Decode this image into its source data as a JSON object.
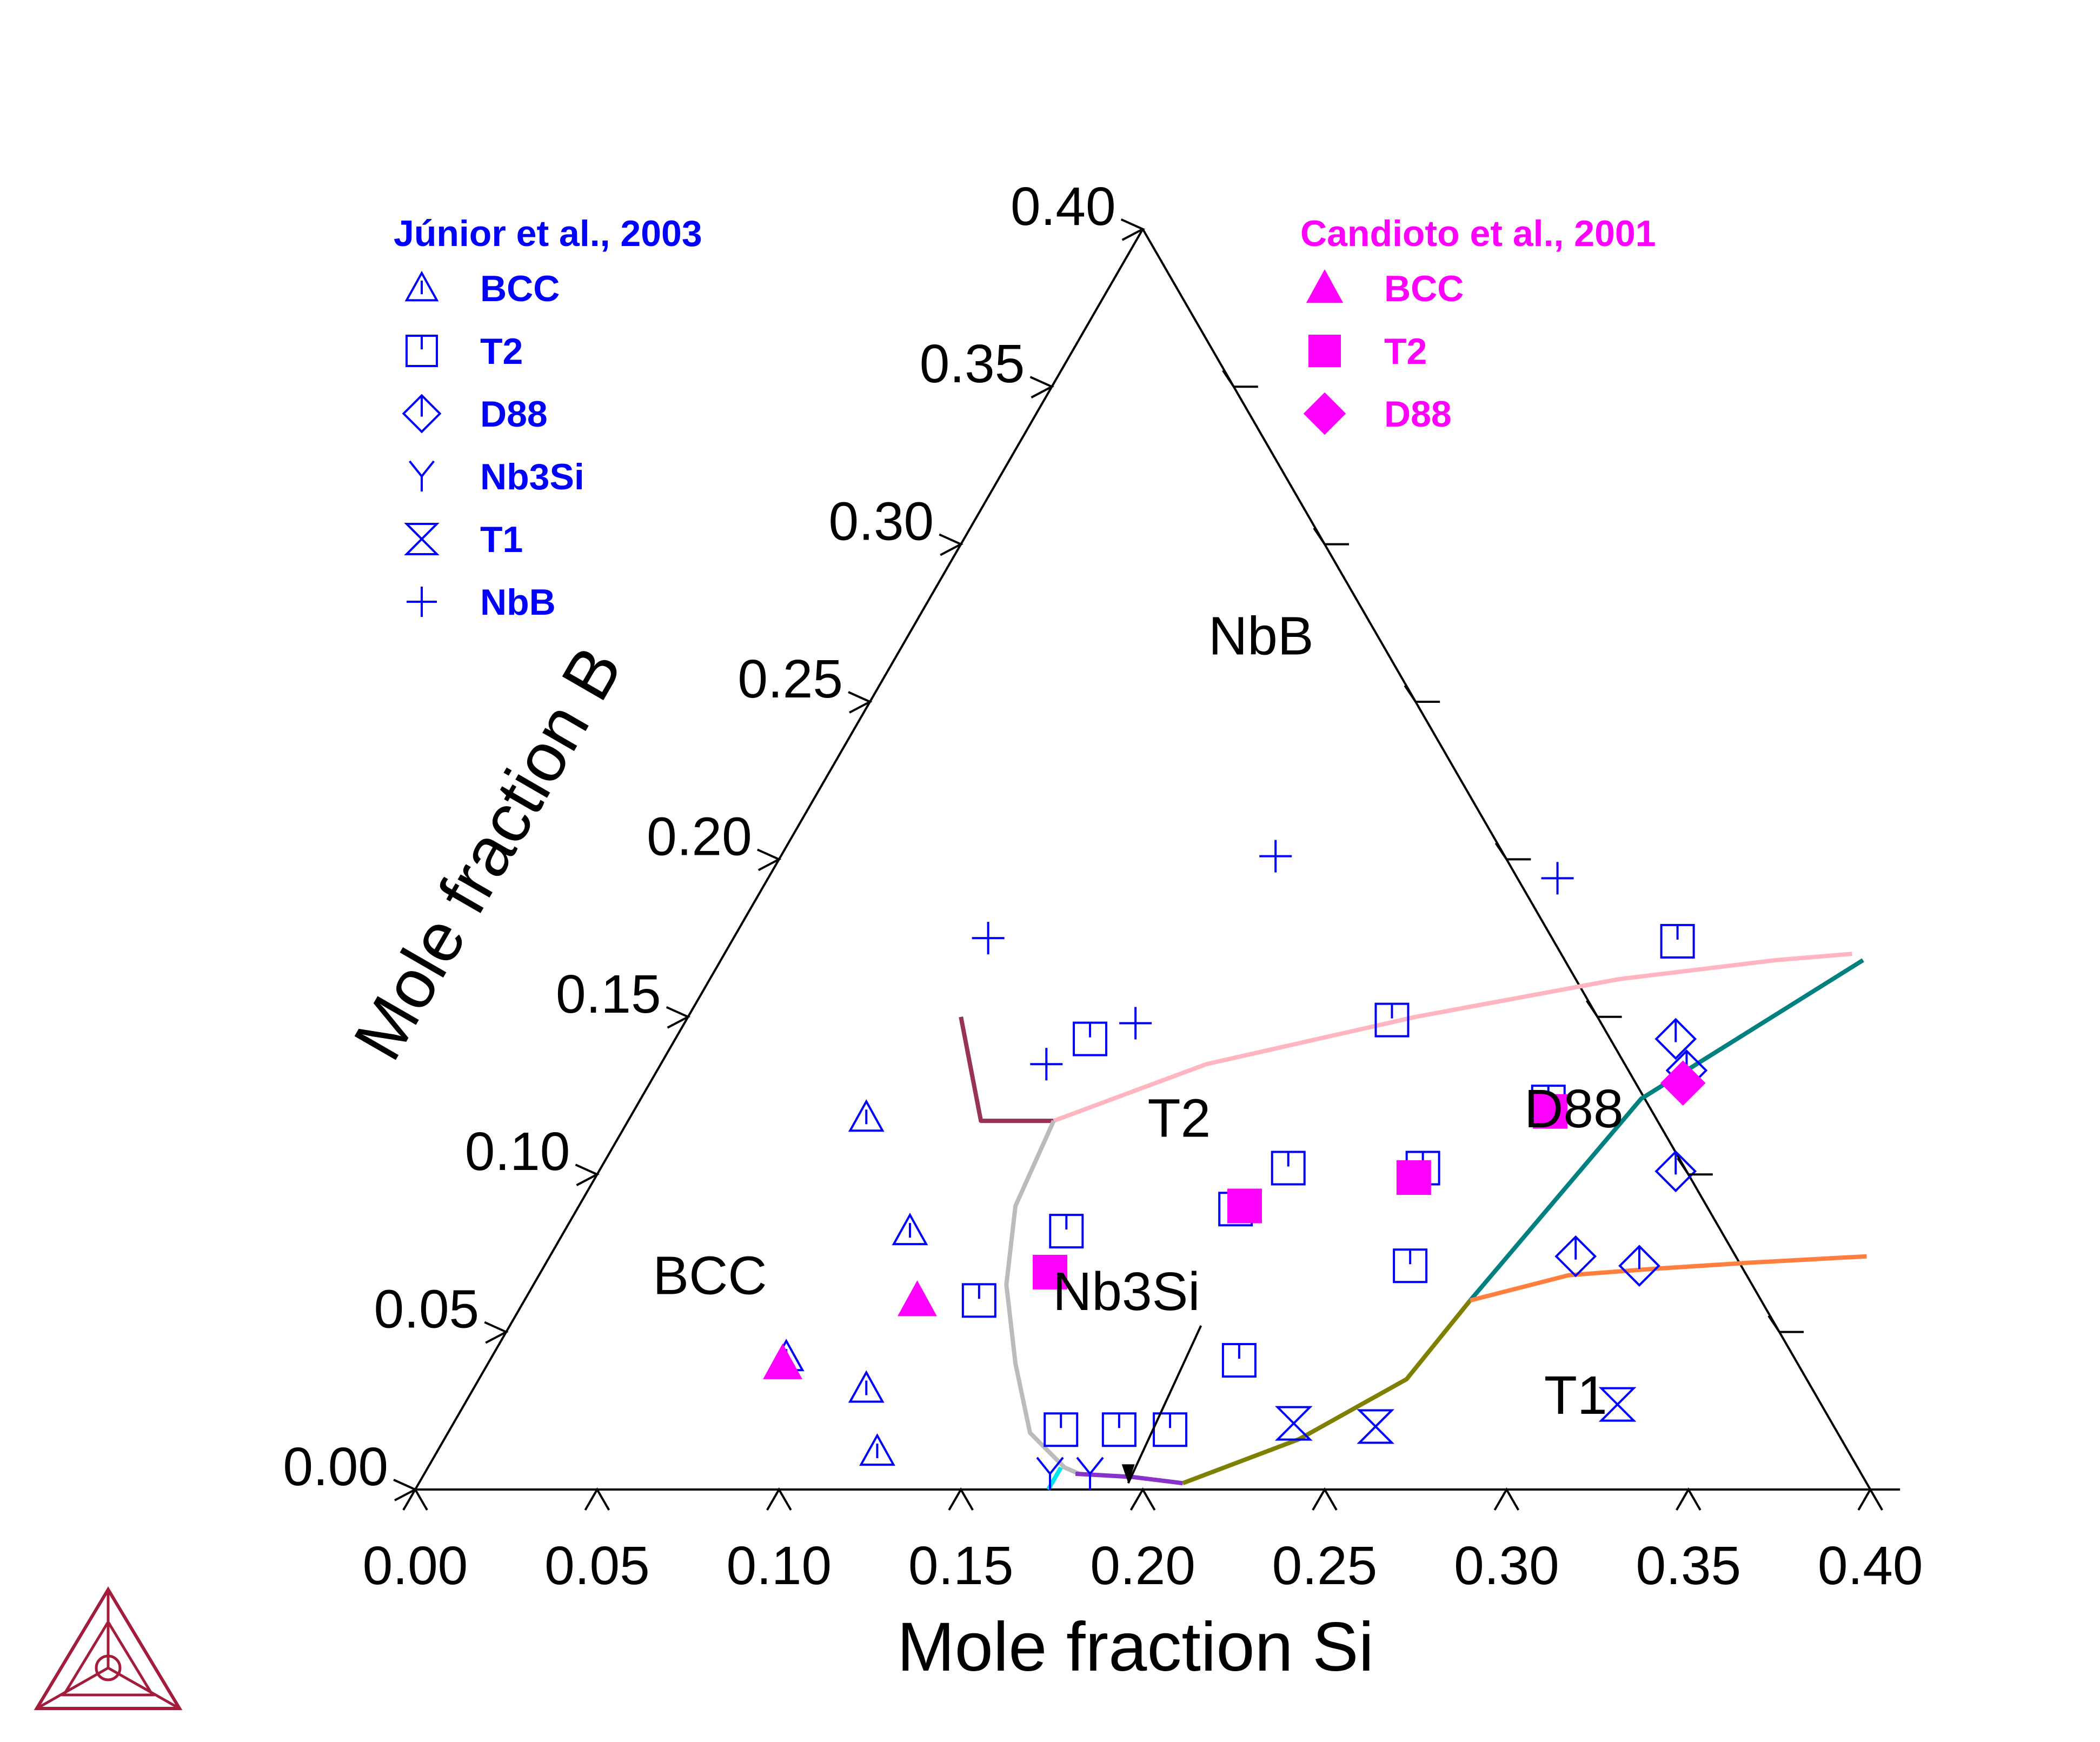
{
  "chart_data": {
    "type": "scatter",
    "subtype": "ternary-isothermal-section",
    "xlabel": "Mole fraction Si",
    "ylabel": "Mole fraction B",
    "xlim": [
      0,
      0.4
    ],
    "ylim": [
      0,
      0.4
    ],
    "grid": false,
    "x_ticks": [
      "0.00",
      "0.05",
      "0.10",
      "0.15",
      "0.20",
      "0.25",
      "0.30",
      "0.35",
      "0.40"
    ],
    "y_ticks": [
      "0.00",
      "0.05",
      "0.10",
      "0.15",
      "0.20",
      "0.25",
      "0.30",
      "0.35",
      "0.40"
    ],
    "region_labels": [
      {
        "text": "NbB",
        "si": 0.1,
        "b": 0.265
      },
      {
        "text": "T2",
        "si": 0.154,
        "b": 0.112
      },
      {
        "text": "BCC",
        "si": 0.05,
        "b": 0.062
      },
      {
        "text": "Nb3Si",
        "si": 0.167,
        "b": 0.057
      },
      {
        "text": "D88",
        "si": 0.261,
        "b": 0.115
      },
      {
        "text": "T1",
        "si": 0.307,
        "b": 0.024
      }
    ],
    "annotation_arrow": {
      "from": {
        "si": 0.19,
        "b": 0.052
      },
      "to": {
        "si": 0.195,
        "b": 0.002
      }
    },
    "phase_boundaries": [
      {
        "color": "#993355",
        "points": [
          [
            0.075,
            0.15
          ],
          [
            0.097,
            0.117
          ],
          [
            0.117,
            0.117
          ]
        ]
      },
      {
        "color": "#ffb6c1",
        "points": [
          [
            0.117,
            0.117
          ],
          [
            0.15,
            0.135
          ],
          [
            0.2,
            0.15
          ],
          [
            0.25,
            0.162
          ],
          [
            0.29,
            0.168
          ],
          [
            0.31,
            0.17
          ]
        ]
      },
      {
        "color": "#bbbbbb",
        "points": [
          [
            0.117,
            0.117
          ],
          [
            0.12,
            0.09
          ],
          [
            0.13,
            0.065
          ],
          [
            0.145,
            0.04
          ],
          [
            0.16,
            0.018
          ],
          [
            0.175,
            0.007
          ],
          [
            0.18,
            0.005
          ]
        ]
      },
      {
        "color": "#00e5ee",
        "points": [
          [
            0.174,
            0.007
          ],
          [
            0.174,
            0.0
          ]
        ]
      },
      {
        "color": "#8833cc",
        "points": [
          [
            0.179,
            0.005
          ],
          [
            0.195,
            0.004
          ],
          [
            0.21,
            0.002
          ]
        ]
      },
      {
        "color": "#808000",
        "points": [
          [
            0.21,
            0.002
          ],
          [
            0.235,
            0.016
          ],
          [
            0.255,
            0.035
          ],
          [
            0.26,
            0.06
          ]
        ]
      },
      {
        "color": "#008080",
        "points": [
          [
            0.26,
            0.06
          ],
          [
            0.275,
            0.124
          ],
          [
            0.314,
            0.168
          ]
        ]
      },
      {
        "color": "#ff7f3f",
        "points": [
          [
            0.26,
            0.06
          ],
          [
            0.283,
            0.068
          ],
          [
            0.305,
            0.07
          ],
          [
            0.331,
            0.072
          ],
          [
            0.362,
            0.074
          ]
        ]
      }
    ],
    "series": [
      {
        "name": "BCC",
        "group": "Júnior et al., 2003",
        "marker": "open-triangle",
        "color": "#0000ff",
        "points": [
          [
            0.065,
            0.118
          ],
          [
            0.081,
            0.042
          ],
          [
            0.095,
            0.082
          ],
          [
            0.108,
            0.032
          ],
          [
            0.121,
            0.012
          ]
        ]
      },
      {
        "name": "T2",
        "group": "Júnior et al., 2003",
        "marker": "open-square",
        "color": "#0000ff",
        "points": [
          [
            0.114,
            0.143
          ],
          [
            0.125,
            0.06
          ],
          [
            0.138,
            0.082
          ],
          [
            0.168,
            0.019
          ],
          [
            0.184,
            0.019
          ],
          [
            0.198,
            0.019
          ],
          [
            0.181,
            0.089
          ],
          [
            0.189,
            0.102
          ],
          [
            0.194,
            0.149
          ],
          [
            0.206,
            0.041
          ],
          [
            0.226,
            0.102
          ],
          [
            0.238,
            0.071
          ],
          [
            0.25,
            0.123
          ],
          [
            0.26,
            0.174
          ]
        ]
      },
      {
        "name": "D88",
        "group": "Júnior et al., 2003",
        "marker": "open-diamond",
        "color": "#0000ff",
        "points": [
          [
            0.275,
            0.143
          ],
          [
            0.283,
            0.133
          ],
          [
            0.296,
            0.101
          ],
          [
            0.282,
            0.074
          ],
          [
            0.301,
            0.071
          ]
        ]
      },
      {
        "name": "Nb3Si",
        "group": "Júnior et al., 2003",
        "marker": "open-y",
        "color": "#0000ff",
        "points": [
          [
            0.172,
            0.005
          ],
          [
            0.183,
            0.005
          ]
        ]
      },
      {
        "name": "T1",
        "group": "Júnior et al., 2003",
        "marker": "open-hourglass",
        "color": "#0000ff",
        "points": [
          [
            0.231,
            0.021
          ],
          [
            0.254,
            0.02
          ],
          [
            0.317,
            0.027
          ]
        ]
      },
      {
        "name": "NbB",
        "group": "Júnior et al., 2003",
        "marker": "plus",
        "color": "#0000ff",
        "points": [
          [
            0.07,
            0.175
          ],
          [
            0.106,
            0.135
          ],
          [
            0.124,
            0.148
          ],
          [
            0.136,
            0.201
          ],
          [
            0.217,
            0.194
          ]
        ]
      },
      {
        "name": "BCC",
        "group": "Candioto et al., 2001",
        "marker": "filled-triangle",
        "color": "#ff00ff",
        "points": [
          [
            0.081,
            0.04
          ],
          [
            0.108,
            0.06
          ]
        ]
      },
      {
        "name": "T2",
        "group": "Candioto et al., 2001",
        "marker": "filled-square",
        "color": "#ff00ff",
        "points": [
          [
            0.14,
            0.069
          ],
          [
            0.183,
            0.09
          ],
          [
            0.225,
            0.099
          ],
          [
            0.252,
            0.12
          ]
        ]
      },
      {
        "name": "D88",
        "group": "Candioto et al., 2001",
        "marker": "filled-diamond",
        "color": "#ff00ff",
        "points": [
          [
            0.284,
            0.129
          ]
        ]
      }
    ]
  },
  "legend": {
    "left": {
      "title": "Júnior et al., 2003",
      "color": "#0000ff",
      "entries": [
        {
          "label": "BCC",
          "marker": "open-triangle"
        },
        {
          "label": "T2",
          "marker": "open-square"
        },
        {
          "label": "D88",
          "marker": "open-diamond"
        },
        {
          "label": "Nb3Si",
          "marker": "open-y"
        },
        {
          "label": "T1",
          "marker": "open-hourglass"
        },
        {
          "label": "NbB",
          "marker": "plus"
        }
      ]
    },
    "right": {
      "title": "Candioto et al., 2001",
      "color": "#ff00ff",
      "entries": [
        {
          "label": "BCC",
          "marker": "filled-triangle"
        },
        {
          "label": "T2",
          "marker": "filled-square"
        },
        {
          "label": "D88",
          "marker": "filled-diamond"
        }
      ]
    }
  },
  "logo": {
    "name": "thermo-calc-logo-icon",
    "color": "#a31c3c"
  }
}
